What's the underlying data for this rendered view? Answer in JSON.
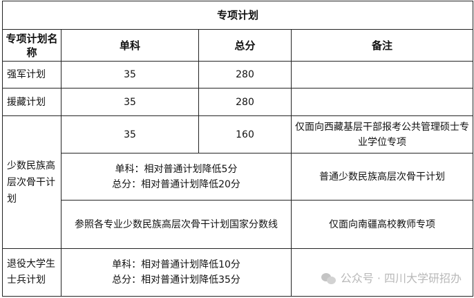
{
  "title": "专项计划",
  "headers": [
    "专项计划名称",
    "单科",
    "总分",
    "备注"
  ],
  "rows": {
    "qiangjun": {
      "name": "强军计划",
      "single": "35",
      "total": "280",
      "note": ""
    },
    "yuanzang": {
      "name": "援藏计划",
      "single": "35",
      "total": "280",
      "note": ""
    },
    "minority": {
      "name": "少数民族高层次骨干计划",
      "r1": {
        "single": "35",
        "total": "160",
        "note": "仅面向西藏基层干部报考公共管理硕士专业学位专项"
      },
      "r2": {
        "line1": "单科：相对普通计划降低5分",
        "line2": "总分：相对普通计划降低20分",
        "note": "普通少数民族高层次骨干计划"
      },
      "r3": {
        "score": "参照各专业少数民族高层次骨干计划国家分数线",
        "note": "仅面向南疆高校教师专项"
      }
    },
    "veteran": {
      "name": "退役大学生士兵计划",
      "line1": "单科：相对普通计划降低10分",
      "line2": "总分：相对普通计划降低35分",
      "note": ""
    }
  },
  "watermark": "公众号 · 四川大学研招办"
}
